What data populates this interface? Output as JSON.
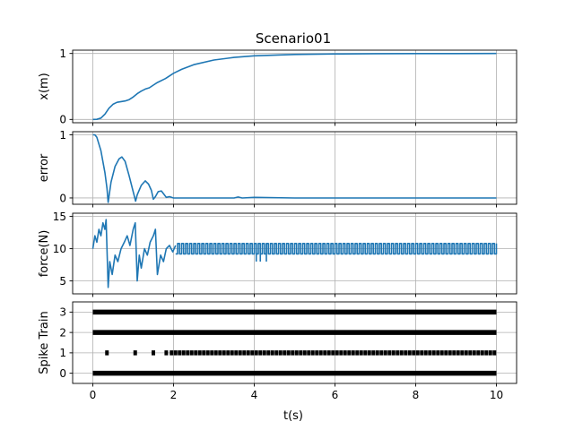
{
  "chart_data": [
    {
      "type": "line",
      "title": "Scenario01",
      "xlabel": "",
      "ylabel": "x(m)",
      "xlim": [
        -0.5,
        10.5
      ],
      "ylim": [
        -0.05,
        1.05
      ],
      "yticks": [
        0,
        1
      ],
      "xticks": [
        0,
        2,
        4,
        6,
        8,
        10
      ],
      "show_xticklabels": false,
      "grid": true,
      "series": [
        {
          "color": "#1f77b4",
          "x": [
            0,
            0.1,
            0.2,
            0.3,
            0.4,
            0.5,
            0.6,
            0.7,
            0.8,
            0.9,
            1.0,
            1.1,
            1.2,
            1.3,
            1.4,
            1.5,
            1.6,
            1.8,
            2.0,
            2.2,
            2.5,
            3.0,
            3.5,
            4.0,
            5.0,
            6.0,
            7.0,
            8.0,
            9.0,
            10.0
          ],
          "y": [
            0,
            0.002,
            0.02,
            0.08,
            0.17,
            0.23,
            0.26,
            0.27,
            0.28,
            0.3,
            0.34,
            0.39,
            0.43,
            0.46,
            0.48,
            0.52,
            0.56,
            0.62,
            0.7,
            0.76,
            0.83,
            0.9,
            0.94,
            0.965,
            0.985,
            0.993,
            0.997,
            0.998,
            0.999,
            1.0
          ]
        }
      ]
    },
    {
      "type": "line",
      "title": "",
      "xlabel": "",
      "ylabel": "error",
      "xlim": [
        -0.5,
        10.5
      ],
      "ylim": [
        -0.1,
        1.05
      ],
      "yticks": [
        0,
        1
      ],
      "xticks": [
        0,
        2,
        4,
        6,
        8,
        10
      ],
      "show_xticklabels": false,
      "grid": true,
      "series": [
        {
          "color": "#1f77b4",
          "x": [
            0,
            0.05,
            0.1,
            0.2,
            0.3,
            0.35,
            0.38,
            0.45,
            0.55,
            0.65,
            0.72,
            0.8,
            0.9,
            1.0,
            1.06,
            1.1,
            1.2,
            1.3,
            1.38,
            1.45,
            1.5,
            1.55,
            1.62,
            1.7,
            1.76,
            1.82,
            1.9,
            2.0,
            2.5,
            3.0,
            3.5,
            3.6,
            3.7,
            4.0,
            5.0,
            6.0,
            7.0,
            8.0,
            9.0,
            10.0
          ],
          "y": [
            1.0,
            1.0,
            0.96,
            0.75,
            0.4,
            0.15,
            -0.07,
            0.25,
            0.5,
            0.62,
            0.65,
            0.58,
            0.35,
            0.1,
            -0.05,
            0.05,
            0.2,
            0.27,
            0.22,
            0.12,
            -0.02,
            0.02,
            0.1,
            0.11,
            0.06,
            0.01,
            0.02,
            0.0,
            0.0,
            0.0,
            0.0,
            0.015,
            0.0,
            0.01,
            0.0,
            0.0,
            0.0,
            0.0,
            0.0,
            0.0
          ]
        }
      ]
    },
    {
      "type": "line",
      "title": "",
      "xlabel": "",
      "ylabel": "force(N)",
      "xlim": [
        -0.5,
        10.5
      ],
      "ylim": [
        3,
        15.5
      ],
      "yticks": [
        5,
        10,
        15
      ],
      "xticks": [
        0,
        2,
        4,
        6,
        8,
        10
      ],
      "show_xticklabels": false,
      "grid": true,
      "series": [
        {
          "color": "#1f77b4",
          "x": [
            0,
            0.05,
            0.1,
            0.15,
            0.2,
            0.25,
            0.3,
            0.33,
            0.38,
            0.42,
            0.48,
            0.55,
            0.62,
            0.7,
            0.78,
            0.85,
            0.92,
            1.0,
            1.05,
            1.1,
            1.15,
            1.2,
            1.28,
            1.35,
            1.42,
            1.5,
            1.55,
            1.6,
            1.68,
            1.75,
            1.82,
            1.9,
            1.98,
            2.05
          ],
          "y": [
            10,
            12,
            11,
            13,
            12,
            14,
            13,
            14.5,
            4,
            8,
            6,
            9,
            8,
            10,
            11,
            12,
            10.5,
            13,
            14,
            5,
            9,
            7,
            10,
            9,
            11,
            12,
            13,
            6,
            9,
            8,
            10,
            10.5,
            9.5,
            10.5
          ]
        }
      ],
      "oscillation": {
        "x_start": 2.05,
        "x_end": 10,
        "low": 9.2,
        "high": 10.8
      },
      "oscillation_dips": {
        "x": [
          4.05,
          4.15,
          4.3
        ],
        "low": 8
      }
    },
    {
      "type": "scatter",
      "title": "",
      "xlabel": "t(s)",
      "ylabel": "Spike Train",
      "xlim": [
        -0.5,
        10.5
      ],
      "ylim": [
        -0.5,
        3.5
      ],
      "yticks": [
        0,
        1,
        2,
        3
      ],
      "xticks": [
        0,
        2,
        4,
        6,
        8,
        10
      ],
      "xticklabels": [
        "0",
        "2",
        "4",
        "6",
        "8",
        "10"
      ],
      "show_xticklabels": true,
      "grid": true,
      "rows": [
        {
          "neuron": 0,
          "solid_from": 0,
          "solid_to": 10
        },
        {
          "neuron": 1,
          "spike_times": [
            0.35,
            1.05,
            1.5,
            1.82,
            1.95,
            2.05,
            2.15,
            2.25,
            2.35,
            2.45,
            2.55,
            2.65,
            2.75,
            2.85,
            2.95,
            3.05,
            3.15,
            3.25,
            3.35,
            3.45,
            3.55,
            3.65,
            3.75,
            3.85,
            3.95,
            4.05,
            4.15,
            4.25,
            4.35,
            4.45,
            4.55,
            4.65,
            4.75,
            4.85,
            4.95,
            5.05,
            5.15,
            5.25,
            5.35,
            5.45,
            5.55,
            5.65,
            5.75,
            5.85,
            5.95,
            6.05,
            6.15,
            6.25,
            6.35,
            6.45,
            6.55,
            6.65,
            6.75,
            6.85,
            6.95,
            7.05,
            7.15,
            7.25,
            7.35,
            7.45,
            7.55,
            7.65,
            7.75,
            7.85,
            7.95,
            8.05,
            8.15,
            8.25,
            8.35,
            8.45,
            8.55,
            8.65,
            8.75,
            8.85,
            8.95,
            9.05,
            9.15,
            9.25,
            9.35,
            9.45,
            9.55,
            9.65,
            9.75,
            9.85,
            9.95
          ]
        },
        {
          "neuron": 2,
          "solid_from": 0,
          "solid_to": 10
        },
        {
          "neuron": 3,
          "solid_from": 0,
          "solid_to": 10
        }
      ]
    }
  ]
}
